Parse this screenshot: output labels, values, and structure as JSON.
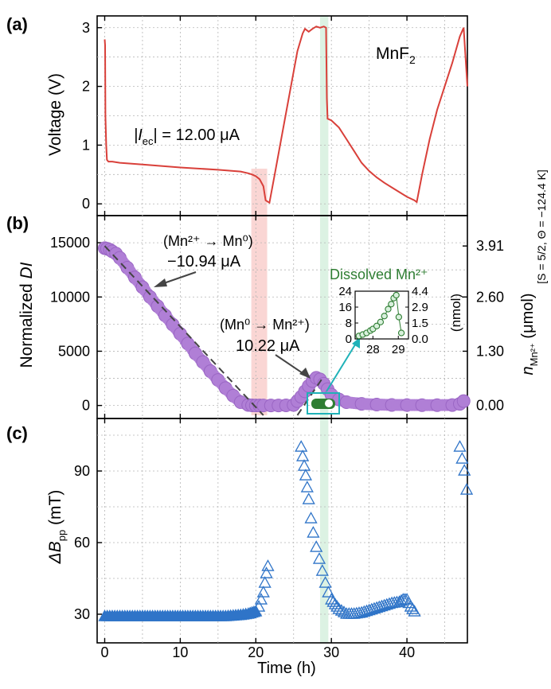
{
  "panel_labels": {
    "a": "(a)",
    "b": "(b)",
    "c": "(c)"
  },
  "x_axis": {
    "label": "Time (h)",
    "ticks": [
      "0",
      "10",
      "20",
      "30",
      "40"
    ],
    "range": [
      -1,
      48
    ]
  },
  "colors": {
    "voltage": "#d9403a",
    "di": "#b07fd6",
    "di_fit": "#555555",
    "mn": "#2e7d32",
    "dbpp": "#2f74c8",
    "inset_box": "#1fb2b8",
    "shade_red": "#f5b5b0",
    "shade_green": "#bfe8cc"
  },
  "panel_a": {
    "title": "MnF",
    "title_sub": "2",
    "ylabel": "Voltage (V)",
    "yticks": [
      "0",
      "1",
      "2",
      "3"
    ],
    "current_annot": {
      "pre": "|I",
      "sub": "ec",
      "post": "| = 12.00 μA"
    }
  },
  "panel_b": {
    "ylabel_main": "Normalized ",
    "ylabel_italic": "DI",
    "yticks_left": [
      "0",
      "5000",
      "10000",
      "15000"
    ],
    "yticks_right": [
      "0.00",
      "1.30",
      "2.60",
      "3.91"
    ],
    "ylabel_right_n": "n",
    "ylabel_right_sub": "Mn²⁺",
    "ylabel_right_unit": " (μmol)",
    "ylabel_right_cond": "[S = 5/2, Θ = −124.4 K]",
    "annot_red_reaction": "(Mn²⁺ → Mn⁰)",
    "annot_red_current": "−10.94 μA",
    "annot_ox_reaction": "(Mn⁰ → Mn²⁺)",
    "annot_ox_current": "10.22 μA",
    "inset_title": "Dissolved Mn²⁺",
    "inset_yticks_left": [
      "0",
      "8",
      "16",
      "24"
    ],
    "inset_yticks_right": [
      "0.0",
      "1.5",
      "2.9",
      "4.4"
    ],
    "inset_ylabel_right": "(nmol)",
    "inset_xticks": [
      "28",
      "29"
    ]
  },
  "panel_c": {
    "ylabel_main": "ΔB",
    "ylabel_sub": "pp",
    "ylabel_unit": " (mT)",
    "yticks": [
      "30",
      "60",
      "90"
    ]
  },
  "chart_data": [
    {
      "type": "line",
      "title": "MnF2",
      "ylabel": "Voltage (V)",
      "xlabel": "Time (h)",
      "xlim": [
        -1,
        48
      ],
      "ylim": [
        -0.2,
        3.2
      ],
      "series": [
        {
          "x": [
            0,
            0.05,
            0.1,
            0.2,
            0.3,
            0.5,
            1,
            2,
            5,
            10,
            15,
            18,
            19,
            19.5,
            20,
            20.5,
            21,
            21.3,
            21.8,
            22.5,
            23.5,
            24.5,
            25.5,
            26.2,
            26.5,
            27.0,
            27.5,
            28.0,
            28.5,
            29.0,
            29.3,
            29.4,
            29.5,
            30,
            31,
            32,
            33,
            34,
            35,
            36,
            37,
            38,
            39,
            40,
            41,
            41.3,
            42,
            43,
            44,
            45,
            46,
            47,
            47.5,
            48
          ],
          "y": [
            2.8,
            2.7,
            1.5,
            1.0,
            0.75,
            0.72,
            0.72,
            0.7,
            0.67,
            0.62,
            0.58,
            0.55,
            0.52,
            0.5,
            0.47,
            0.42,
            0.3,
            0.06,
            0.02,
            0.5,
            1.2,
            1.9,
            2.6,
            2.9,
            2.98,
            2.93,
            2.98,
            3.02,
            3.0,
            3.02,
            3.0,
            1.8,
            1.45,
            1.42,
            1.3,
            1.1,
            0.9,
            0.7,
            0.56,
            0.45,
            0.36,
            0.28,
            0.2,
            0.12,
            0.06,
            0.03,
            0.5,
            1.1,
            1.6,
            2.0,
            2.4,
            2.85,
            3.0,
            2.0
          ]
        }
      ],
      "shaded_regions": [
        [
          19.4,
          21.5
        ],
        [
          28.5,
          29.6
        ]
      ]
    },
    {
      "type": "scatter",
      "ylabel": "Normalized DI",
      "ylabel_right": "n Mn2+ (μmol)",
      "ylim": [
        -1200,
        17500
      ],
      "ylim_right_ticks": [
        0.0,
        1.3,
        2.6,
        3.91
      ],
      "series": [
        {
          "name": "DI",
          "x": [
            0,
            0.3,
            0.7,
            1,
            1.5,
            2,
            3,
            4,
            5,
            6,
            7,
            8,
            9,
            10,
            11,
            12,
            13,
            14,
            15,
            16,
            17,
            18,
            19,
            19.5,
            20,
            20.5,
            21,
            22,
            23,
            24,
            25,
            25.5,
            26,
            26.5,
            27,
            27.5,
            28,
            28.5,
            29,
            29.5,
            30,
            31,
            32,
            34,
            36,
            38,
            40,
            42,
            44,
            46,
            47,
            47.5
          ],
          "y": [
            14500,
            14450,
            14350,
            14200,
            14000,
            13600,
            12700,
            11800,
            10900,
            10000,
            9150,
            8300,
            7450,
            6600,
            5700,
            4800,
            4000,
            3150,
            2350,
            1600,
            900,
            300,
            50,
            10,
            0,
            0,
            0,
            0,
            0,
            10,
            50,
            400,
            800,
            1300,
            1800,
            2250,
            2550,
            2400,
            2000,
            1500,
            1000,
            550,
            300,
            150,
            80,
            50,
            40,
            30,
            30,
            40,
            150,
            400
          ]
        },
        {
          "name": "fit_reduction",
          "x": [
            0,
            21
          ],
          "y": [
            14700,
            -900
          ]
        },
        {
          "name": "fit_oxidation",
          "x": [
            25.5,
            28.9
          ],
          "y": [
            -900,
            2600
          ]
        }
      ],
      "annotations": [
        "(Mn2+ → Mn0) −10.94 μA",
        "(Mn0 → Mn2+) 10.22 μA"
      ]
    },
    {
      "type": "scatter",
      "title": "Dissolved Mn2+",
      "xlim": [
        27.3,
        29.4
      ],
      "ylim": [
        0,
        24
      ],
      "ylabel_right": "(nmol)",
      "series": [
        {
          "x": [
            27.45,
            27.6,
            27.75,
            27.9,
            28.0,
            28.15,
            28.3,
            28.45,
            28.6,
            28.72,
            28.82,
            28.92,
            29.02,
            29.12
          ],
          "y": [
            1.5,
            2.2,
            3.0,
            4.2,
            5.0,
            6.5,
            8.5,
            11.5,
            15.0,
            17.5,
            20.5,
            22.0,
            11.0,
            3.0
          ]
        }
      ]
    },
    {
      "type": "scatter",
      "ylabel": "ΔBpp (mT)",
      "xlabel": "Time (h)",
      "xlim": [
        -1,
        48
      ],
      "ylim": [
        18,
        112
      ],
      "series": [
        {
          "x": [
            0,
            2,
            4,
            6,
            8,
            10,
            12,
            14,
            16,
            18,
            19,
            19.5,
            20,
            20.4,
            20.7,
            21.0,
            21.2,
            21.4,
            21.6,
            26.0,
            26.2,
            26.4,
            26.6,
            26.8,
            27.0,
            27.3,
            27.6,
            28.0,
            28.4,
            28.8,
            29.2,
            29.6,
            30.0,
            30.5,
            31,
            32,
            33,
            34,
            35,
            36,
            37,
            38,
            39,
            39.5,
            40,
            40.5,
            41,
            47.0,
            47.3,
            47.6,
            47.9
          ],
          "y": [
            29,
            29,
            29,
            29,
            29,
            29,
            29,
            29,
            29,
            29.5,
            30,
            30.5,
            31,
            33,
            36,
            39,
            43,
            47,
            50,
            100,
            96,
            92,
            88,
            83,
            78,
            70,
            64,
            58,
            53,
            48,
            43,
            39,
            36,
            34,
            32,
            30,
            30,
            30.5,
            31.5,
            32.5,
            33.5,
            34.5,
            35,
            36,
            36,
            33,
            31,
            100,
            95,
            90,
            82
          ]
        }
      ]
    }
  ]
}
